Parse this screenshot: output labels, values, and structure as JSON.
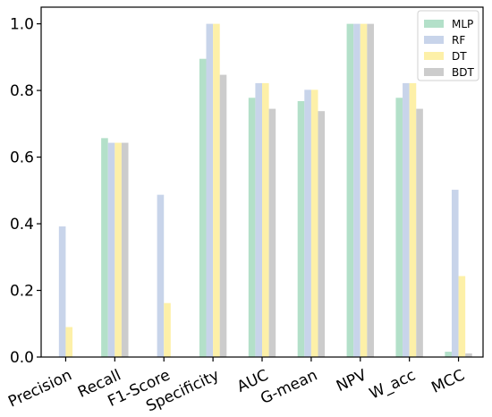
{
  "chart_data": {
    "type": "bar",
    "categories": [
      "Precision",
      "Recall",
      "F1-Score",
      "Specificity",
      "AUC",
      "G-mean",
      "NPV",
      "W_acc",
      "MCC"
    ],
    "series": [
      {
        "name": "MLP",
        "color": "#b3e0c9",
        "values": [
          0.0,
          0.657,
          0.0,
          0.895,
          0.778,
          0.768,
          1.0,
          0.778,
          0.016
        ]
      },
      {
        "name": "RF",
        "color": "#c8d4ea",
        "values": [
          0.392,
          0.643,
          0.487,
          1.0,
          0.822,
          0.802,
          1.0,
          0.822,
          0.502
        ]
      },
      {
        "name": "DT",
        "color": "#fdf0a8",
        "values": [
          0.09,
          0.643,
          0.162,
          1.0,
          0.822,
          0.802,
          1.0,
          0.822,
          0.243
        ]
      },
      {
        "name": "BDT",
        "color": "#cccccc",
        "values": [
          0.0,
          0.643,
          0.0,
          0.847,
          0.745,
          0.738,
          1.0,
          0.745,
          0.011
        ]
      }
    ],
    "ylim": [
      0.0,
      1.05
    ],
    "yticks": [
      "0.0",
      "0.2",
      "0.4",
      "0.6",
      "0.8",
      "1.0"
    ],
    "ytick_values": [
      0.0,
      0.2,
      0.4,
      0.6,
      0.8,
      1.0
    ],
    "legend_position": "top-right",
    "grid": false,
    "title": "",
    "xlabel": "",
    "ylabel": ""
  }
}
